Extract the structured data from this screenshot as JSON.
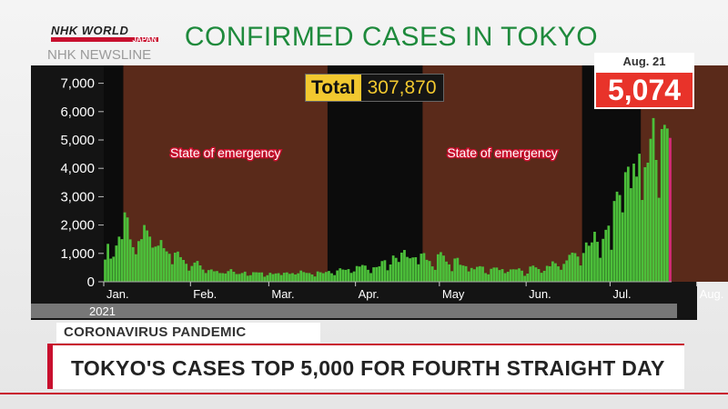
{
  "logo": {
    "nhk": "NHK WORLD",
    "japan": "JAPAN"
  },
  "watermark": "NHK NEWSLINE",
  "total_box": {
    "label": "Total",
    "value": "307,870"
  },
  "latest": {
    "date": "Aug. 21",
    "value": "5,074"
  },
  "strap": {
    "topic": "CORONAVIRUS PANDEMIC",
    "headline": "TOKYO'S CASES TOP 5,000 FOR FOURTH STRAIGHT DAY"
  },
  "colors": {
    "bars": "#4cbf3a",
    "emergency_band": "#5a2a1a",
    "title": "#1e8a3c",
    "badge": "#e8332a",
    "total_label": "#f2c82f"
  },
  "chart_data": {
    "type": "bar",
    "title": "CONFIRMED CASES IN TOKYO",
    "xlabel": "",
    "ylabel": "",
    "ylim": [
      0,
      7500
    ],
    "yticks": [
      0,
      1000,
      2000,
      3000,
      4000,
      5000,
      6000,
      7000
    ],
    "ytick_labels": [
      "0",
      "1,000",
      "2,000",
      "3,000",
      "4,000",
      "5,000",
      "6,000",
      "7,000"
    ],
    "year_label": "2021",
    "x_start": "2021-01-01",
    "month_labels": [
      "Jan.",
      "Feb.",
      "Mar.",
      "Apr.",
      "May",
      "Jun.",
      "Jul.",
      "Aug."
    ],
    "emergency_periods": [
      {
        "label": "State of emergency",
        "start": "2021-01-08",
        "end": "2021-03-21"
      },
      {
        "label": "State of emergency",
        "start": "2021-04-25",
        "end": "2021-06-20"
      },
      {
        "label": "",
        "start": "2021-07-12",
        "end": "2021-08-21"
      }
    ],
    "daily_cases": [
      783,
      1337,
      816,
      884,
      1278,
      1591,
      1502,
      2447,
      2268,
      1494,
      1219,
      970,
      1433,
      1502,
      2001,
      1809,
      1592,
      1204,
      1240,
      1274,
      1471,
      1184,
      1070,
      986,
      618,
      1026,
      1064,
      868,
      769,
      633,
      393,
      556,
      676,
      734,
      577,
      429,
      307,
      412,
      434,
      369,
      378,
      307,
      305,
      291,
      376,
      445,
      353,
      272,
      275,
      309,
      357,
      213,
      232,
      337,
      334,
      327,
      329,
      178,
      232,
      316,
      270,
      293,
      303,
      237,
      318,
      330,
      279,
      304,
      258,
      298,
      395,
      342,
      312,
      307,
      256,
      187,
      364,
      335,
      303,
      346,
      380,
      300,
      234,
      399,
      475,
      431,
      419,
      446,
      313,
      364,
      554,
      537,
      591,
      570,
      421,
      306,
      510,
      517,
      543,
      729,
      759,
      405,
      609,
      925,
      843,
      698,
      1027,
      1121,
      876,
      828,
      857,
      866,
      616,
      991,
      1010,
      773,
      732,
      543,
      419,
      969,
      1044,
      923,
      712,
      612,
      374,
      819,
      843,
      598,
      573,
      549,
      364,
      487,
      440,
      526,
      549,
      533,
      306,
      262,
      457,
      501,
      501,
      413,
      447,
      304,
      352,
      435,
      440,
      434,
      473,
      391,
      209,
      288,
      536,
      570,
      508,
      448,
      317,
      386,
      561,
      546,
      719,
      653,
      544,
      423,
      630,
      753,
      950,
      1027,
      1010,
      890,
      574,
      1014,
      1385,
      1271,
      1387,
      1763,
      1409,
      845,
      1513,
      1832,
      1979,
      1128,
      2848,
      3177,
      3058,
      2447,
      3865,
      4058,
      3300,
      4166,
      3709,
      4515,
      2884,
      4040,
      4200,
      5042,
      5773,
      4295,
      2962,
      5386,
      5534,
      5405,
      5074
    ]
  }
}
